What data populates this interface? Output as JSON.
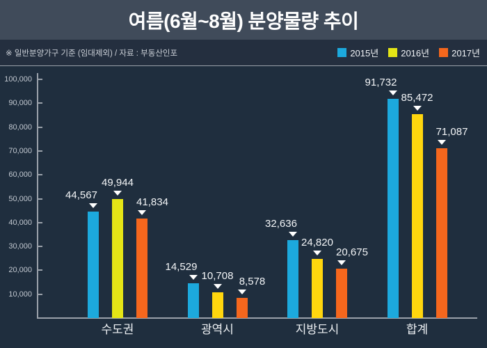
{
  "header": {
    "title": "여름(6월~8월) 분양물량 추이"
  },
  "subheader": {
    "note": "※ 일반분양가구 기준 (임대제외) / 자료 : 부동산인포",
    "legend": [
      {
        "label": "2015년",
        "color": "#1ca9dd"
      },
      {
        "label": "2016년",
        "color": "#e4e516"
      },
      {
        "label": "2017년",
        "color": "#f5671d"
      }
    ]
  },
  "chart_data": {
    "type": "bar",
    "title": "여름(6월~8월) 분양물량 추이",
    "categories": [
      "수도권",
      "광역시",
      "지방도시",
      "합계"
    ],
    "series": [
      {
        "name": "2015년",
        "color": "#1ca9dd",
        "bar_colors": [
          "#1ca9dd",
          "#1ca9dd",
          "#1ca9dd",
          "#1ca9dd"
        ],
        "values": [
          44567,
          14529,
          32636,
          91732
        ]
      },
      {
        "name": "2016년",
        "color": "#e4e516",
        "bar_colors": [
          "#e4e516",
          "#ffd60e",
          "#ffd60e",
          "#ffd60e"
        ],
        "values": [
          49944,
          10708,
          24820,
          85472
        ]
      },
      {
        "name": "2017년",
        "color": "#f5671d",
        "bar_colors": [
          "#f5671d",
          "#f5671d",
          "#f5671d",
          "#f5671d"
        ],
        "values": [
          41834,
          8578,
          20675,
          71087
        ]
      }
    ],
    "value_labels": {
      "수도권": [
        "44,567",
        "49,944",
        "41,834"
      ],
      "광역시": [
        "14,529",
        "10,708",
        "8,578"
      ],
      "지방도시": [
        "32,636",
        "24,820",
        "20,675"
      ],
      "합계": [
        "91,732",
        "85,472",
        "71,087"
      ]
    },
    "marker_icon": "down-triangle",
    "xlabel": "",
    "ylabel": "",
    "ylim": [
      0,
      100000
    ],
    "y_ticks": [
      10000,
      20000,
      30000,
      40000,
      50000,
      60000,
      70000,
      80000,
      90000,
      100000
    ],
    "grid": false,
    "legend_position": "top-right"
  },
  "colors": {
    "title_band_bg": "#404b5a",
    "sub_band_bg": "#242f3f",
    "chart_bg": "#1f2e3e",
    "axis": "#9aa1aa",
    "text_primary": "#ffffff",
    "text_secondary": "#ccd1d8"
  }
}
